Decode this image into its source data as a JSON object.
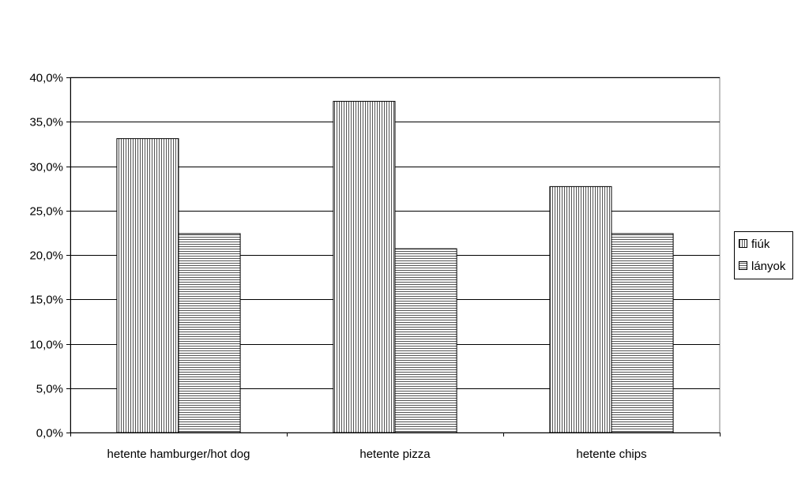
{
  "chart_data": {
    "type": "bar",
    "categories": [
      "hetente hamburger/hot dog",
      "hetente pizza",
      "hetente chips"
    ],
    "series": [
      {
        "name": "fiúk",
        "values": [
          33.1,
          37.3,
          27.7
        ],
        "pattern": "vertical-lines"
      },
      {
        "name": "lányok",
        "values": [
          22.4,
          20.7,
          22.4
        ],
        "pattern": "horizontal-lines"
      }
    ],
    "yticks": [
      "0,0%",
      "5,0%",
      "10,0%",
      "15,0%",
      "20,0%",
      "25,0%",
      "30,0%",
      "35,0%",
      "40,0%"
    ],
    "ylim": [
      0,
      40
    ],
    "title": "",
    "xlabel": "",
    "ylabel": "",
    "grid": true,
    "legend_position": "right",
    "colors": {
      "bar_fill": "#ffffff",
      "stroke": "#000000",
      "grid": "#000000"
    }
  }
}
